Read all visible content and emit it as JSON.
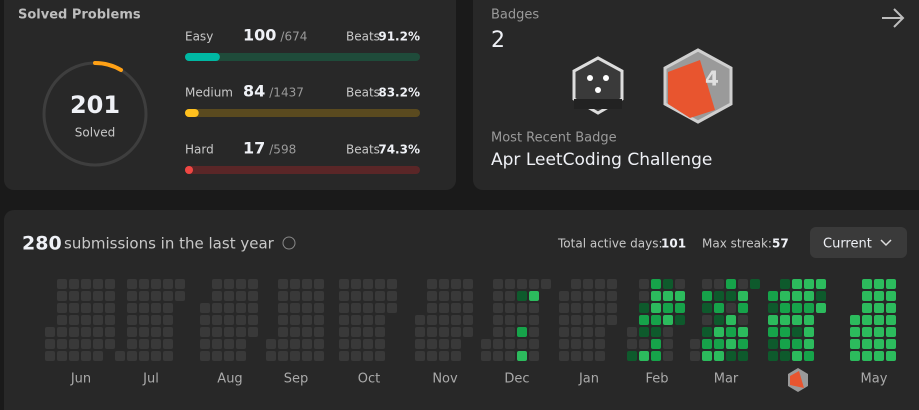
{
  "solved": {
    "title": "Solved Problems",
    "count": 201,
    "count_label": "Solved",
    "levels": [
      {
        "name": "Easy",
        "solved": 100,
        "total": 674,
        "total_label": "/674",
        "beats_label": "Beats",
        "beats": "91.2%",
        "color": "#00b8a3",
        "track": "#1f4b3a"
      },
      {
        "name": "Medium",
        "solved": 84,
        "total": 1437,
        "total_label": "/1437",
        "beats_label": "Beats",
        "beats": "83.2%",
        "color": "#ffc01e",
        "track": "#5a4a1f"
      },
      {
        "name": "Hard",
        "solved": 17,
        "total": 598,
        "total_label": "/598",
        "beats_label": "Beats",
        "beats": "74.3%",
        "color": "#ef4743",
        "track": "#5a2627"
      }
    ]
  },
  "badges": {
    "title": "Badges",
    "count": 2,
    "recent_label": "Most Recent Badge",
    "recent": "Apr LeetCoding Challenge"
  },
  "activity": {
    "count": 280,
    "label": "submissions in the last year",
    "active_label": "Total active days:",
    "active": 101,
    "streak_label": "Max streak:",
    "streak": 57,
    "dropdown": "Current"
  },
  "heatmap": {
    "level_colors": [
      "#393939",
      "#0e5a2c",
      "#16a34a",
      "#2cbb5d"
    ],
    "months": [
      {
        "name": "Jun",
        "weeks": [
          [
            null,
            null,
            null,
            null,
            0,
            0,
            0
          ],
          [
            0,
            0,
            0,
            0,
            0,
            0,
            0
          ],
          [
            0,
            0,
            0,
            0,
            0,
            0,
            0
          ],
          [
            0,
            0,
            0,
            0,
            0,
            0,
            0
          ],
          [
            0,
            0,
            0,
            0,
            0,
            0,
            0
          ],
          [
            0,
            0,
            0,
            0,
            0,
            0,
            null
          ]
        ]
      },
      {
        "name": "Jul",
        "weeks": [
          [
            null,
            null,
            null,
            null,
            null,
            null,
            0
          ],
          [
            0,
            0,
            0,
            0,
            0,
            0,
            0
          ],
          [
            0,
            0,
            0,
            0,
            0,
            0,
            0
          ],
          [
            0,
            0,
            0,
            0,
            0,
            0,
            0
          ],
          [
            0,
            0,
            0,
            0,
            0,
            0,
            0
          ],
          [
            0,
            0,
            null,
            null,
            null,
            null,
            null
          ]
        ]
      },
      {
        "name": "Aug",
        "weeks": [
          [
            null,
            null,
            0,
            0,
            0,
            0,
            0
          ],
          [
            0,
            0,
            0,
            0,
            0,
            0,
            0
          ],
          [
            0,
            0,
            0,
            0,
            0,
            0,
            0
          ],
          [
            0,
            0,
            0,
            0,
            0,
            0,
            0
          ],
          [
            0,
            0,
            0,
            0,
            0,
            null,
            null
          ]
        ]
      },
      {
        "name": "Sep",
        "weeks": [
          [
            null,
            null,
            null,
            null,
            null,
            0,
            0
          ],
          [
            0,
            0,
            0,
            0,
            0,
            0,
            0
          ],
          [
            0,
            0,
            0,
            0,
            0,
            0,
            0
          ],
          [
            0,
            0,
            0,
            0,
            0,
            0,
            0
          ],
          [
            0,
            0,
            0,
            0,
            0,
            0,
            0
          ]
        ]
      },
      {
        "name": "Oct",
        "weeks": [
          [
            0,
            0,
            0,
            0,
            0,
            0,
            0
          ],
          [
            0,
            0,
            0,
            0,
            0,
            0,
            0
          ],
          [
            0,
            0,
            0,
            0,
            0,
            0,
            0
          ],
          [
            0,
            0,
            0,
            0,
            0,
            0,
            0
          ],
          [
            0,
            0,
            0,
            null,
            null,
            null,
            null
          ]
        ]
      },
      {
        "name": "Nov",
        "weeks": [
          [
            null,
            null,
            null,
            0,
            0,
            0,
            0
          ],
          [
            0,
            0,
            0,
            0,
            0,
            0,
            0
          ],
          [
            0,
            0,
            0,
            0,
            0,
            0,
            0
          ],
          [
            0,
            0,
            0,
            0,
            0,
            0,
            0
          ],
          [
            0,
            0,
            0,
            0,
            0,
            null,
            null
          ]
        ]
      },
      {
        "name": "Dec",
        "weeks": [
          [
            null,
            null,
            null,
            null,
            null,
            0,
            0
          ],
          [
            0,
            0,
            0,
            0,
            0,
            0,
            0
          ],
          [
            0,
            0,
            0,
            0,
            0,
            0,
            0
          ],
          [
            0,
            1,
            0,
            0,
            2,
            0,
            3
          ],
          [
            0,
            3,
            0,
            0,
            0,
            0,
            0
          ],
          [
            0,
            null,
            null,
            null,
            null,
            null,
            null
          ]
        ]
      },
      {
        "name": "Jan",
        "weeks": [
          [
            null,
            0,
            0,
            0,
            0,
            0,
            0
          ],
          [
            0,
            0,
            0,
            0,
            0,
            0,
            0
          ],
          [
            0,
            0,
            0,
            0,
            0,
            0,
            0
          ],
          [
            0,
            0,
            0,
            0,
            0,
            0,
            0
          ],
          [
            0,
            0,
            0,
            0,
            null,
            null,
            null
          ]
        ]
      },
      {
        "name": "Feb",
        "weeks": [
          [
            null,
            null,
            null,
            null,
            0,
            0,
            1
          ],
          [
            0,
            0,
            1,
            2,
            1,
            0,
            3
          ],
          [
            2,
            3,
            3,
            2,
            1,
            2,
            2
          ],
          [
            1,
            3,
            2,
            3,
            0,
            0,
            0
          ],
          [
            0,
            3,
            2,
            1,
            null,
            null,
            null
          ]
        ]
      },
      {
        "name": "Mar",
        "weeks": [
          [
            null,
            null,
            null,
            null,
            null,
            0,
            0
          ],
          [
            0,
            2,
            1,
            0,
            1,
            2,
            3
          ],
          [
            0,
            1,
            2,
            1,
            3,
            2,
            3
          ],
          [
            2,
            1,
            0,
            3,
            2,
            3,
            1
          ],
          [
            0,
            3,
            2,
            0,
            3,
            2,
            1
          ],
          [
            1,
            null,
            null,
            null,
            null,
            null,
            null
          ]
        ]
      },
      {
        "name": null,
        "weeks": [
          [
            null,
            2,
            1,
            3,
            2,
            1,
            1
          ],
          [
            1,
            3,
            2,
            3,
            2,
            2,
            1
          ],
          [
            3,
            3,
            2,
            3,
            1,
            2,
            3
          ],
          [
            3,
            3,
            2,
            3,
            3,
            3,
            2
          ],
          [
            3,
            1,
            3,
            null,
            null,
            null,
            null
          ]
        ]
      },
      {
        "name": "May",
        "weeks": [
          [
            null,
            null,
            null,
            3,
            3,
            3,
            3
          ],
          [
            3,
            3,
            3,
            3,
            3,
            3,
            3
          ],
          [
            3,
            3,
            3,
            3,
            3,
            3,
            3
          ],
          [
            3,
            3,
            3,
            3,
            3,
            3,
            3
          ]
        ]
      }
    ]
  }
}
